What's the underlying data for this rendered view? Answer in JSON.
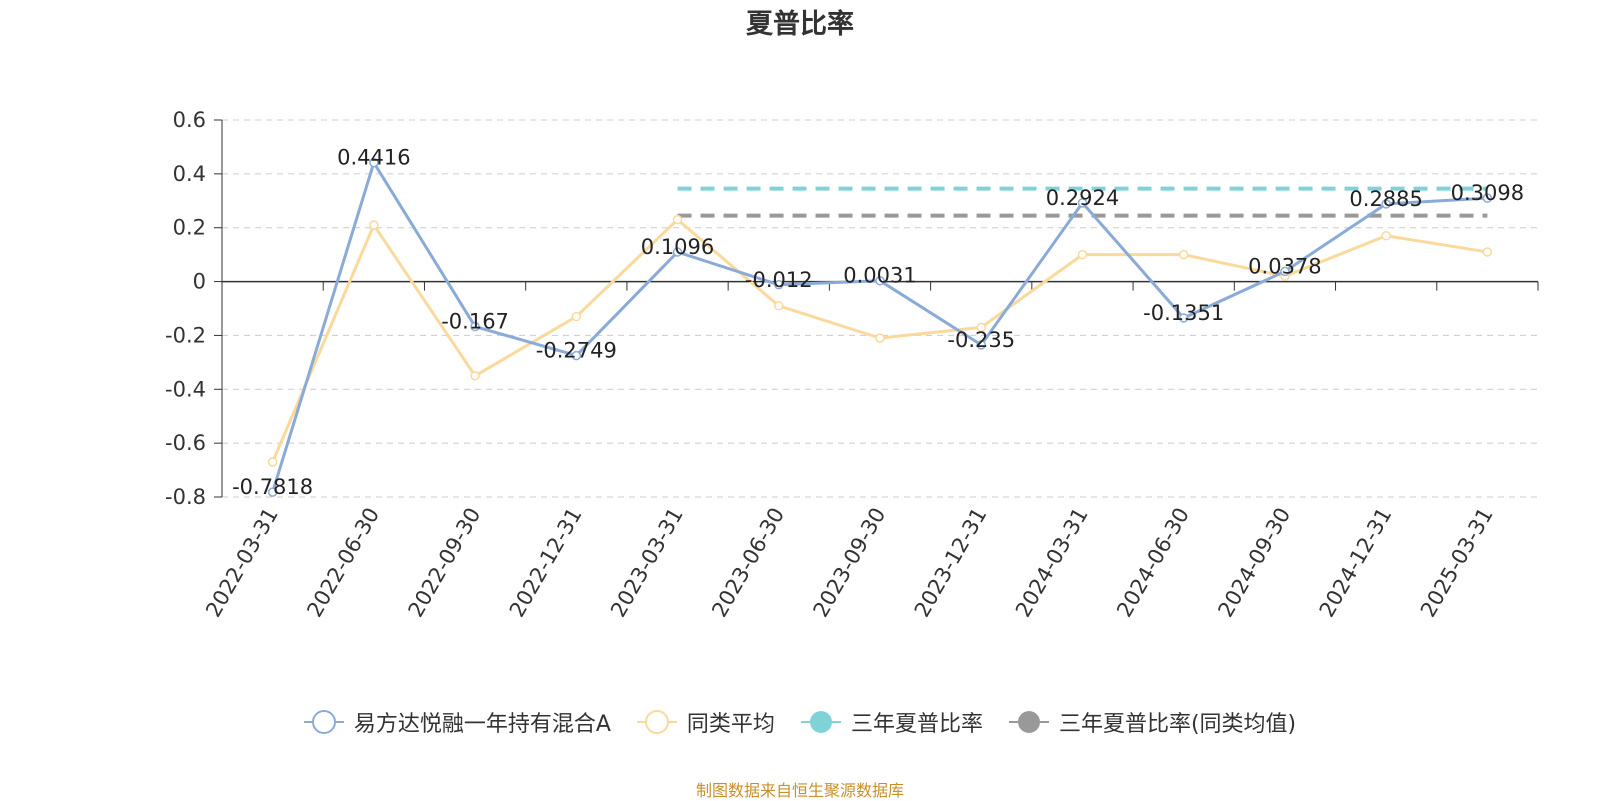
{
  "chart_data": {
    "type": "line",
    "title": "夏普比率",
    "categories": [
      "2022-03-31",
      "2022-06-30",
      "2022-09-30",
      "2022-12-31",
      "2023-03-31",
      "2023-06-30",
      "2023-09-30",
      "2023-12-31",
      "2024-03-31",
      "2024-06-30",
      "2024-09-30",
      "2024-12-31",
      "2025-03-31"
    ],
    "ylim": [
      -0.8,
      0.6
    ],
    "yticks": [
      0.6,
      0.4,
      0.2,
      0,
      -0.2,
      -0.4,
      -0.6,
      -0.8
    ],
    "ytick_labels": [
      "0.6",
      "0.4",
      "0.2",
      "0",
      "-0.2",
      "-0.4",
      "-0.6",
      "-0.8"
    ],
    "grid": true,
    "legend_position": "bottom",
    "series": [
      {
        "name": "易方达悦融一年持有混合A",
        "color": "#8aaad8",
        "values": [
          -0.7818,
          0.4416,
          -0.167,
          -0.2749,
          0.1096,
          -0.012,
          0.0031,
          -0.235,
          0.2924,
          -0.1351,
          0.0378,
          0.2885,
          0.3098
        ],
        "labels": [
          "-0.7818",
          "0.4416",
          "-0.167",
          "-0.2749",
          "0.1096",
          "-0.012",
          "0.0031",
          "-0.235",
          "0.2924",
          "-0.1351",
          "0.0378",
          "0.2885",
          "0.3098"
        ]
      },
      {
        "name": "同类平均",
        "color": "#fad99b",
        "values": [
          -0.67,
          0.21,
          -0.35,
          -0.13,
          0.23,
          -0.09,
          -0.21,
          -0.17,
          0.1,
          0.1,
          0.02,
          0.17,
          0.11
        ]
      }
    ],
    "reference_lines": [
      {
        "name": "三年夏普比率",
        "color": "#7fd3d6",
        "value": 0.345,
        "from": "2023-03-31",
        "to": "2025-03-31"
      },
      {
        "name": "三年夏普比率(同类均值)",
        "color": "#999999",
        "value": 0.245,
        "from": "2023-03-31",
        "to": "2025-03-31"
      }
    ]
  },
  "source_text": "制图数据来自恒生聚源数据库"
}
